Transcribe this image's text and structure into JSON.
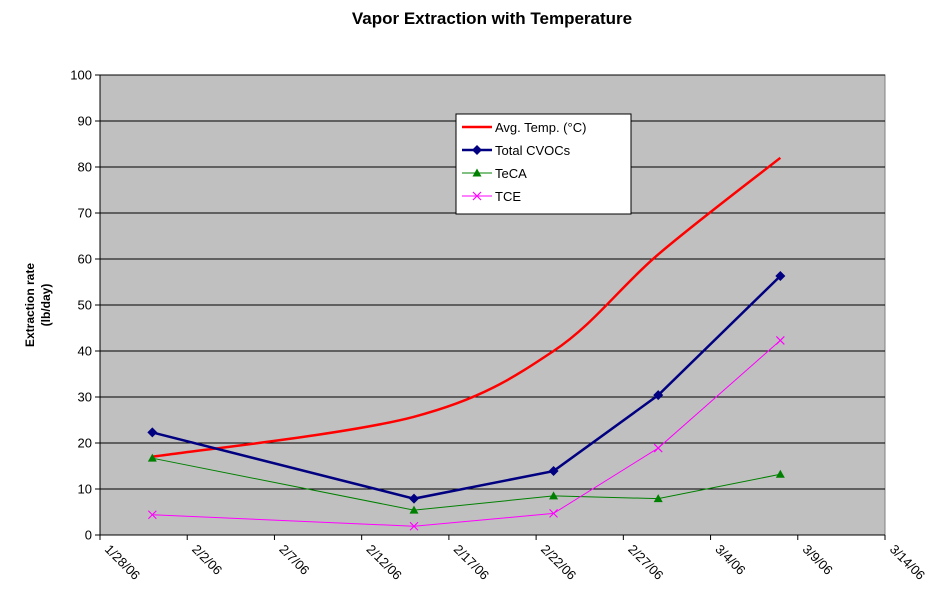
{
  "chart_data": {
    "type": "line",
    "title": "Vapor Extraction with Temperature",
    "y_label": [
      "Extraction rate",
      "(lb/day)"
    ],
    "x": [
      "1/31/06",
      "2/15/06",
      "2/23/06",
      "3/1/06",
      "3/8/06"
    ],
    "series": [
      {
        "name": "Avg. Temp. (°C)",
        "color": "#ff0000",
        "marker": "none",
        "smooth": true,
        "width": 2.5,
        "values": [
          17,
          25.7,
          40,
          61,
          82
        ]
      },
      {
        "name": "Total CVOCs",
        "color": "#000080",
        "marker": "diamond",
        "smooth": false,
        "width": 2.5,
        "values": [
          22.3,
          7.9,
          13.9,
          30.4,
          56.3
        ]
      },
      {
        "name": "TeCA",
        "color": "#008000",
        "marker": "triangle",
        "smooth": false,
        "width": 1,
        "values": [
          16.7,
          5.4,
          8.5,
          7.9,
          13.2
        ]
      },
      {
        "name": "TCE",
        "color": "#ff00ff",
        "marker": "x",
        "smooth": false,
        "width": 1,
        "values": [
          4.4,
          1.9,
          4.7,
          18.9,
          42.3
        ]
      }
    ],
    "xlim": [
      "1/28/06",
      "3/14/06"
    ],
    "xticks": [
      "1/28/06",
      "2/2/06",
      "2/7/06",
      "2/12/06",
      "2/17/06",
      "2/22/06",
      "2/27/06",
      "3/4/06",
      "3/9/06",
      "3/14/06"
    ],
    "ylim": [
      0,
      100
    ],
    "yticks": [
      0,
      10,
      20,
      30,
      40,
      50,
      60,
      70,
      80,
      90,
      100
    ],
    "grid": true,
    "plot_background": "#c0c0c0"
  }
}
